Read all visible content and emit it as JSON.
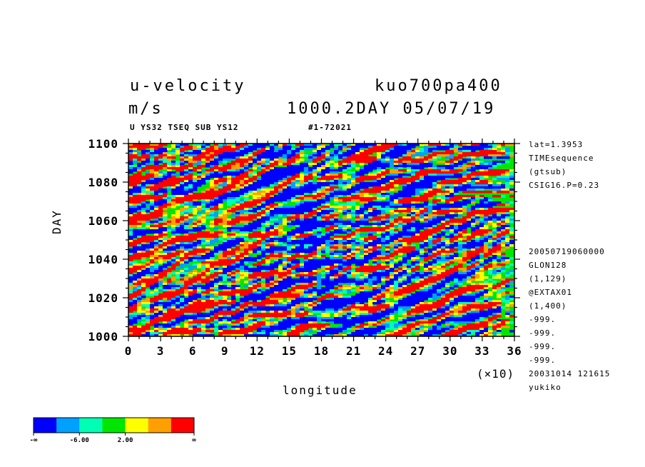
{
  "header": {
    "variable": "u-velocity",
    "units": "m/s",
    "experiment": "kuo700pa400",
    "time_info": "1000.2DAY 05/07/19",
    "subtitle_left": "U YS32 TSEQ SUB YS12",
    "subtitle_right": "#1-72021"
  },
  "side_info": {
    "top": [
      "lat=1.3953",
      "TIMEsequence",
      "(gtsub)",
      "CSIG16.P=0.23"
    ],
    "bottom": [
      "20050719060000",
      "GLON128",
      "(1,129)",
      "@EXTAX01",
      "(1,400)",
      "-999.",
      "-999.",
      "-999.",
      "-999.",
      "20031014 121615",
      "yukiko"
    ]
  },
  "chart_data": {
    "type": "heatmap",
    "title": "u-velocity",
    "xlabel": "longitude",
    "ylabel": "DAY",
    "x_multiplier_label": "(×10)",
    "xlim": [
      0,
      36
    ],
    "ylim": [
      1000,
      1100
    ],
    "x_ticks": [
      "0",
      "3",
      "6",
      "9",
      "12",
      "15",
      "18",
      "21",
      "24",
      "27",
      "30",
      "33",
      "36"
    ],
    "y_ticks": [
      "1000",
      "1020",
      "1040",
      "1060",
      "1080",
      "1100"
    ],
    "colorbar": {
      "colors": [
        "#0000ff",
        "#00a0ff",
        "#00ffb4",
        "#00e600",
        "#ffff00",
        "#ffa000",
        "#ff0000"
      ],
      "labels": [
        "-∞",
        "-6.00",
        "2.00",
        "∞"
      ]
    }
  }
}
